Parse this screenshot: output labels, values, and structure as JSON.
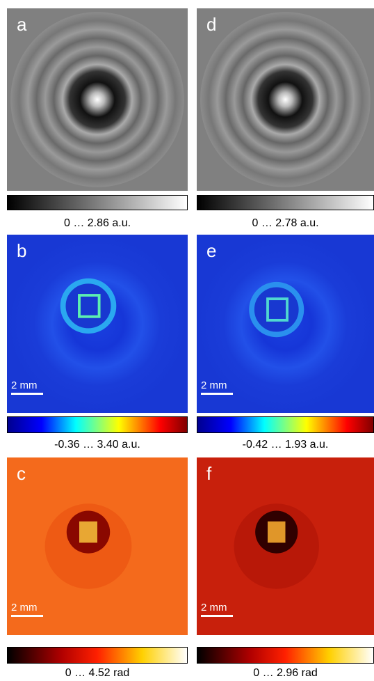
{
  "panels": [
    {
      "label": "a",
      "caption": "0 … 2.86 a.u."
    },
    {
      "label": "b",
      "caption": "-0.36 … 3.40 a.u."
    },
    {
      "label": "c",
      "caption": "0 … 4.52 rad"
    },
    {
      "label": "d",
      "caption": "0 … 2.78 a.u."
    },
    {
      "label": "e",
      "caption": "-0.42 … 1.93 a.u."
    },
    {
      "label": "f",
      "caption": "0 … 2.96 rad"
    }
  ],
  "scale_bar": "2 mm"
}
